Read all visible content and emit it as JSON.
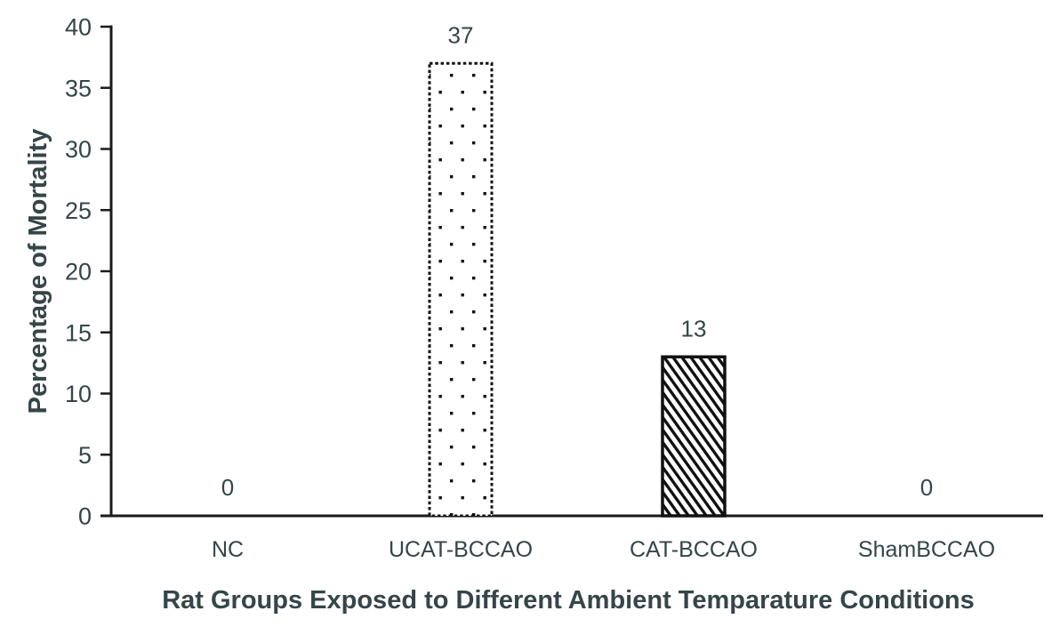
{
  "chart_data": {
    "type": "bar",
    "title": "",
    "categories": [
      "NC",
      "UCAT-BCCAO",
      "CAT-BCCAO",
      "ShamBCCAO"
    ],
    "values": [
      0,
      37,
      13,
      0
    ],
    "value_labels": [
      "0",
      "37",
      "13",
      "0"
    ],
    "bar_patterns": [
      "none",
      "dots",
      "diagonal",
      "none"
    ],
    "xlabel": "Rat Groups Exposed to Different Ambient Temparature Conditions",
    "ylabel": "Percentage of Mortality",
    "ylim": [
      0,
      40
    ],
    "yticks": [
      0,
      5,
      10,
      15,
      20,
      25,
      30,
      35,
      40
    ],
    "grid": false,
    "legend_position": "none",
    "colors": {
      "text": "#364548",
      "axis": "#1a1a1a",
      "bar_stroke": "#111111",
      "background": "#ffffff"
    }
  }
}
